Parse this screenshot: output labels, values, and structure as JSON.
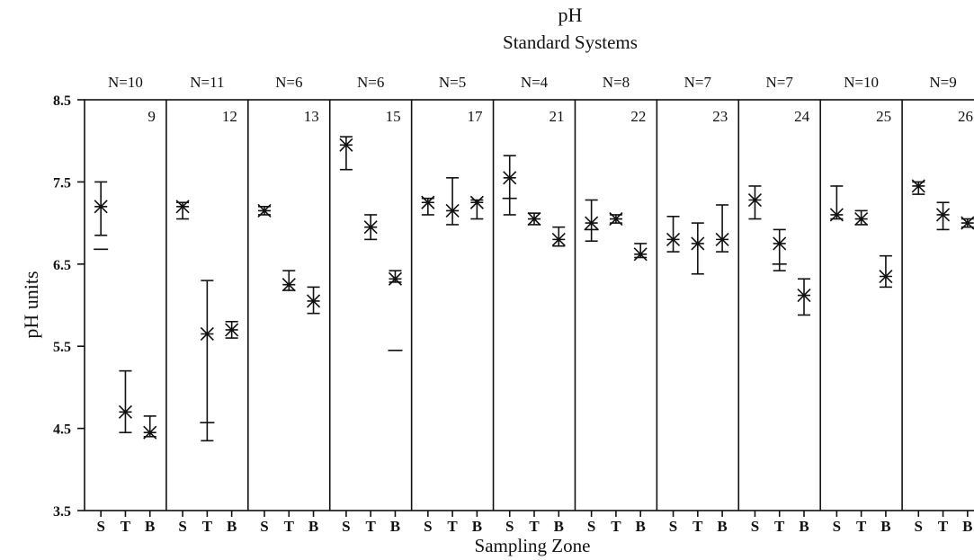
{
  "chart_data": {
    "type": "scatter",
    "title": "pH",
    "subtitle": "Standard Systems",
    "xlabel": "Sampling Zone",
    "ylabel": "pH units",
    "ylim": [
      3.5,
      8.5
    ],
    "yticks": [
      "8.5",
      "7.5",
      "6.5",
      "5.5",
      "4.5",
      "3.5"
    ],
    "zones": [
      "S",
      "T",
      "B"
    ],
    "grid": false,
    "legend": "none",
    "panels": [
      {
        "id": "9",
        "n": "N=10",
        "zones": [
          {
            "zone": "S",
            "mean": 7.2,
            "high": 7.5,
            "low": 6.85,
            "extra_low": 6.68
          },
          {
            "zone": "T",
            "mean": 4.7,
            "high": 5.2,
            "low": 4.45
          },
          {
            "zone": "B",
            "mean": 4.45,
            "high": 4.65,
            "low": 4.4
          }
        ]
      },
      {
        "id": "12",
        "n": "N=11",
        "zones": [
          {
            "zone": "S",
            "mean": 7.2,
            "high": 7.25,
            "low": 7.05
          },
          {
            "zone": "T",
            "mean": 5.65,
            "high": 6.3,
            "low": 4.35,
            "extra_low": 4.57
          },
          {
            "zone": "B",
            "mean": 5.7,
            "high": 5.8,
            "low": 5.6
          }
        ]
      },
      {
        "id": "13",
        "n": "N=6",
        "zones": [
          {
            "zone": "S",
            "mean": 7.15,
            "high": 7.2,
            "low": 7.1
          },
          {
            "zone": "T",
            "mean": 6.25,
            "high": 6.42,
            "low": 6.18
          },
          {
            "zone": "B",
            "mean": 6.05,
            "high": 6.22,
            "low": 5.9
          }
        ]
      },
      {
        "id": "15",
        "n": "N=6",
        "zones": [
          {
            "zone": "S",
            "mean": 7.95,
            "high": 8.05,
            "low": 7.65
          },
          {
            "zone": "T",
            "mean": 6.95,
            "high": 7.1,
            "low": 6.8
          },
          {
            "zone": "B",
            "mean": 6.32,
            "high": 6.42,
            "low": 6.28,
            "extra_low": 5.45
          }
        ]
      },
      {
        "id": "17",
        "n": "N=5",
        "zones": [
          {
            "zone": "S",
            "mean": 7.25,
            "high": 7.3,
            "low": 7.1
          },
          {
            "zone": "T",
            "mean": 7.15,
            "high": 7.55,
            "low": 6.98
          },
          {
            "zone": "B",
            "mean": 7.25,
            "high": 7.28,
            "low": 7.05
          }
        ]
      },
      {
        "id": "21",
        "n": "N=4",
        "zones": [
          {
            "zone": "S",
            "mean": 7.55,
            "high": 7.82,
            "low": 7.1,
            "extra_low": 7.3
          },
          {
            "zone": "T",
            "mean": 7.05,
            "high": 7.12,
            "low": 6.98
          },
          {
            "zone": "B",
            "mean": 6.8,
            "high": 6.95,
            "low": 6.72
          }
        ]
      },
      {
        "id": "22",
        "n": "N=8",
        "zones": [
          {
            "zone": "S",
            "mean": 7.0,
            "high": 7.28,
            "low": 6.78,
            "extra_low": 6.92
          },
          {
            "zone": "T",
            "mean": 7.05,
            "high": 7.1,
            "low": 7.0
          },
          {
            "zone": "B",
            "mean": 6.62,
            "high": 6.75,
            "low": 6.58
          }
        ]
      },
      {
        "id": "23",
        "n": "N=7",
        "zones": [
          {
            "zone": "S",
            "mean": 6.8,
            "high": 7.08,
            "low": 6.65
          },
          {
            "zone": "T",
            "mean": 6.75,
            "high": 7.0,
            "low": 6.38
          },
          {
            "zone": "B",
            "mean": 6.8,
            "high": 7.22,
            "low": 6.65
          }
        ]
      },
      {
        "id": "24",
        "n": "N=7",
        "zones": [
          {
            "zone": "S",
            "mean": 7.28,
            "high": 7.45,
            "low": 7.05
          },
          {
            "zone": "T",
            "mean": 6.75,
            "high": 6.92,
            "low": 6.42,
            "extra_low": 6.5
          },
          {
            "zone": "B",
            "mean": 6.12,
            "high": 6.32,
            "low": 5.88
          }
        ]
      },
      {
        "id": "25",
        "n": "N=10",
        "zones": [
          {
            "zone": "S",
            "mean": 7.1,
            "high": 7.45,
            "low": 7.05
          },
          {
            "zone": "T",
            "mean": 7.05,
            "high": 7.15,
            "low": 6.98
          },
          {
            "zone": "B",
            "mean": 6.35,
            "high": 6.6,
            "low": 6.22
          }
        ]
      },
      {
        "id": "26",
        "n": "N=9",
        "zones": [
          {
            "zone": "S",
            "mean": 7.45,
            "high": 7.5,
            "low": 7.35
          },
          {
            "zone": "T",
            "mean": 7.1,
            "high": 7.25,
            "low": 6.92
          },
          {
            "zone": "B",
            "mean": 7.0,
            "high": 7.05,
            "low": 6.95
          }
        ]
      }
    ]
  }
}
